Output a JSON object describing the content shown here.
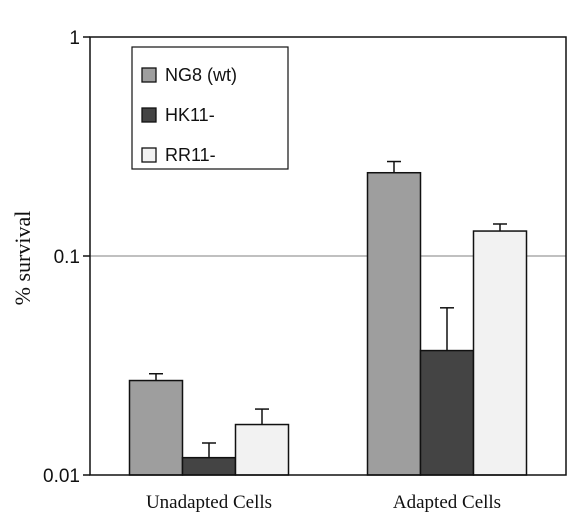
{
  "chart_data": {
    "type": "bar",
    "title": "",
    "xlabel": "",
    "ylabel": "% survival",
    "yscale": "log",
    "ylim": [
      0.01,
      1
    ],
    "yticks": [
      {
        "value": 0.01,
        "label": "0.01"
      },
      {
        "value": 0.1,
        "label": "0.1"
      },
      {
        "value": 1,
        "label": "1"
      }
    ],
    "grid": "major-y",
    "legend_position": "top-left",
    "categories": [
      "Unadapted Cells",
      "Adapted Cells"
    ],
    "series": [
      {
        "name": "NG8 (wt)",
        "color": "#9e9e9e",
        "values": [
          0.027,
          0.24
        ],
        "error_upper": [
          0.029,
          0.27
        ]
      },
      {
        "name": "HK11-",
        "color": "#444444",
        "values": [
          0.012,
          0.037
        ],
        "error_upper": [
          0.014,
          0.058
        ]
      },
      {
        "name": "RR11-",
        "color": "#f2f2f2",
        "values": [
          0.017,
          0.13
        ],
        "error_upper": [
          0.02,
          0.14
        ]
      }
    ]
  }
}
